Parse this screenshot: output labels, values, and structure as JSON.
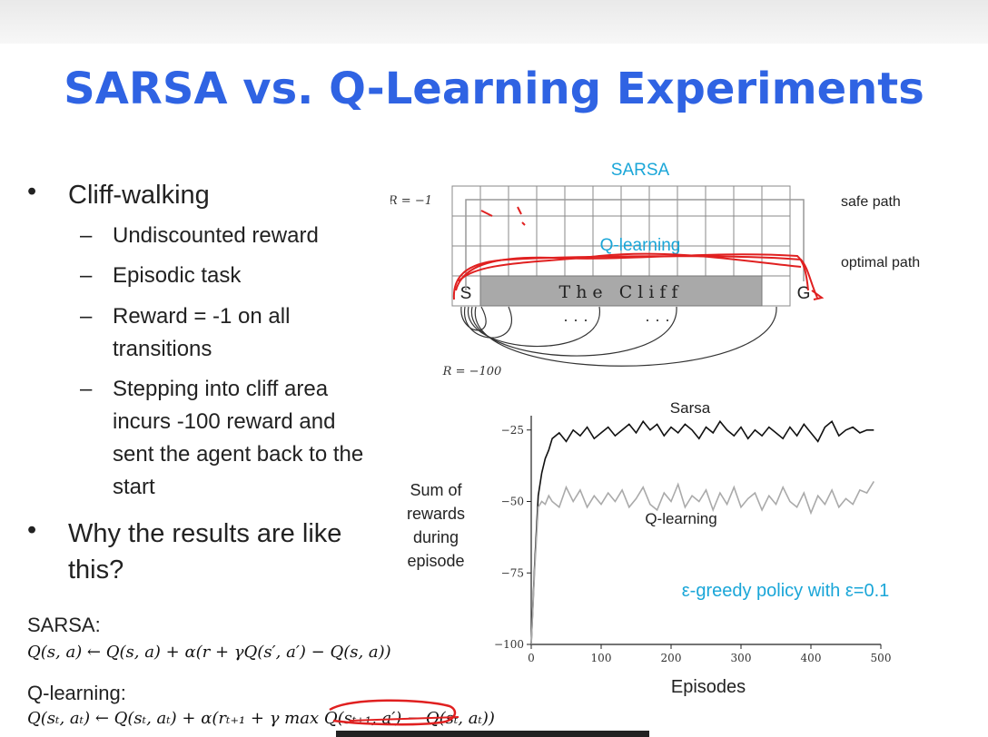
{
  "slide": {
    "title": "SARSA vs. Q-Learning Experiments"
  },
  "bullets": {
    "b1": "Cliff-walking",
    "b1_sub": [
      "Undiscounted reward",
      "Episodic task",
      "Reward = -1 on all transitions",
      "Stepping into cliff area incurs -100 reward and sent the agent back to the start"
    ],
    "b2": "Why the results are like this?"
  },
  "equations": {
    "sarsa_label": "SARSA:",
    "sarsa_eq": "Q(s, a) ← Q(s, a) + α(r + γQ(s′, a′) − Q(s, a))",
    "q_label": "Q-learning:",
    "q_eq": "Q(sₜ, aₜ) ← Q(sₜ, aₜ) + α(rₜ₊₁ + γ max Q(sₜ₊₁, a′) − Q(sₜ, aₜ))"
  },
  "gridworld": {
    "sarsa_annot": "SARSA",
    "qlearning_annot": "Q-learning",
    "r_minus1": "R = −1",
    "r_minus100": "R = −100",
    "safe_path": "safe path",
    "optimal_path": "optimal path",
    "start": "S",
    "goal": "G",
    "cliff": "The Cliff",
    "dots_left": "· · ·",
    "dots_right": "· · ·",
    "annotation_color": "#e02020",
    "annot_blue": "#1aa6d8"
  },
  "chart_data": {
    "type": "line",
    "ylabel": "Sum of rewards during episode",
    "xlabel": "Episodes",
    "xlim": [
      0,
      500
    ],
    "ylim": [
      -100,
      -20
    ],
    "xticks": [
      0,
      100,
      200,
      300,
      400,
      500
    ],
    "yticks": [
      -100,
      -75,
      -50,
      -25
    ],
    "ytick_labels": [
      "−100",
      "−75",
      "−50",
      "−25"
    ],
    "annotation": "ε-greedy policy with ε=0.1",
    "series": [
      {
        "name": "Sarsa",
        "color": "#111111",
        "x": [
          0,
          5,
          10,
          15,
          20,
          25,
          30,
          40,
          50,
          60,
          70,
          80,
          90,
          100,
          110,
          120,
          130,
          140,
          150,
          160,
          170,
          180,
          190,
          200,
          210,
          220,
          230,
          240,
          250,
          260,
          270,
          280,
          290,
          300,
          310,
          320,
          330,
          340,
          350,
          360,
          370,
          380,
          390,
          400,
          410,
          420,
          430,
          440,
          450,
          460,
          470,
          480,
          490
        ],
        "values": [
          -100,
          -72,
          -48,
          -40,
          -35,
          -32,
          -28,
          -26,
          -29,
          -25,
          -27,
          -24,
          -28,
          -26,
          -24,
          -27,
          -25,
          -23,
          -26,
          -22,
          -25,
          -23,
          -27,
          -24,
          -26,
          -23,
          -25,
          -28,
          -24,
          -26,
          -22,
          -25,
          -27,
          -24,
          -28,
          -25,
          -27,
          -24,
          -26,
          -28,
          -24,
          -27,
          -23,
          -26,
          -29,
          -24,
          -22,
          -27,
          -25,
          -24,
          -26,
          -25,
          -25
        ]
      },
      {
        "name": "Q-learning",
        "color": "#aaaaaa",
        "x": [
          0,
          5,
          10,
          15,
          20,
          25,
          30,
          40,
          50,
          60,
          70,
          80,
          90,
          100,
          110,
          120,
          130,
          140,
          150,
          160,
          170,
          180,
          190,
          200,
          210,
          220,
          230,
          240,
          250,
          260,
          270,
          280,
          290,
          300,
          310,
          320,
          330,
          340,
          350,
          360,
          370,
          380,
          390,
          400,
          410,
          420,
          430,
          440,
          450,
          460,
          470,
          480,
          490
        ],
        "values": [
          -100,
          -74,
          -52,
          -50,
          -51,
          -48,
          -50,
          -52,
          -45,
          -50,
          -46,
          -52,
          -48,
          -51,
          -47,
          -50,
          -46,
          -52,
          -49,
          -45,
          -51,
          -53,
          -47,
          -50,
          -44,
          -52,
          -48,
          -50,
          -46,
          -53,
          -47,
          -51,
          -45,
          -52,
          -49,
          -47,
          -53,
          -48,
          -51,
          -45,
          -50,
          -52,
          -47,
          -54,
          -48,
          -51,
          -46,
          -52,
          -49,
          -51,
          -46,
          -47,
          -43
        ]
      }
    ]
  }
}
